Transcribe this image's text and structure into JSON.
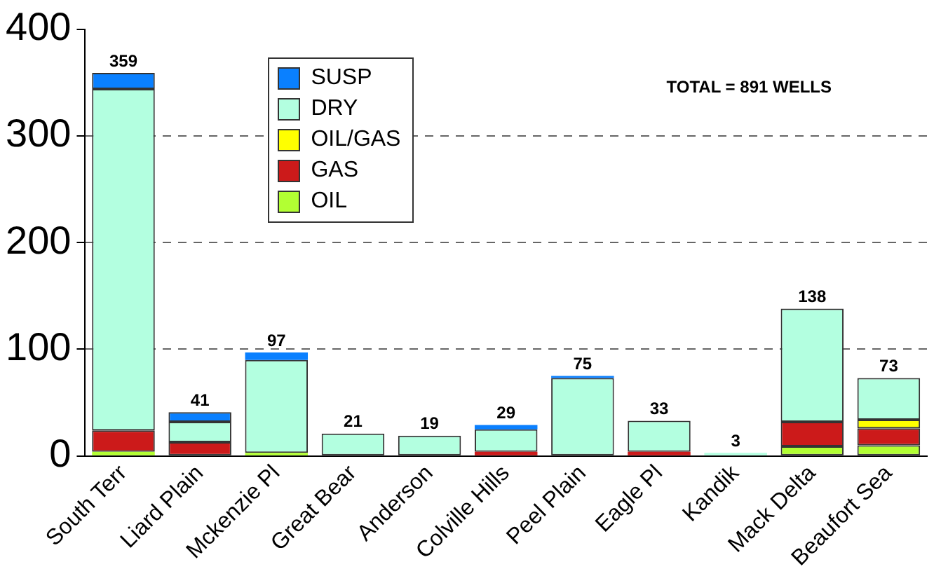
{
  "chart_data": {
    "type": "bar",
    "stacked": true,
    "categories": [
      "South Terr",
      "Liard Plain",
      "Mckenzie Pl",
      "Great Bear",
      "Anderson",
      "Colville Hills",
      "Peel Plain",
      "Eagle Pl",
      "Kandik",
      "Mack Delta",
      "Beaufort Sea"
    ],
    "series": [
      {
        "name": "OIL",
        "color": "#b2ff33",
        "values": [
          4,
          0,
          3,
          0,
          0,
          0,
          0,
          0,
          0,
          9,
          10
        ]
      },
      {
        "name": "GAS",
        "color": "#cc1a1a",
        "values": [
          20,
          13,
          0,
          0,
          0,
          4,
          0,
          4,
          0,
          23,
          16
        ]
      },
      {
        "name": "OIL/GAS",
        "color": "#ffff00",
        "values": [
          0,
          0,
          0,
          0,
          0,
          0,
          0,
          0,
          0,
          0,
          8
        ]
      },
      {
        "name": "DRY",
        "color": "#b3ffe0",
        "values": [
          320,
          19,
          87,
          21,
          19,
          21,
          73,
          29,
          3,
          106,
          39
        ]
      },
      {
        "name": "SUSP",
        "color": "#0a80ff",
        "values": [
          15,
          9,
          7,
          0,
          0,
          4,
          2,
          0,
          0,
          0,
          0
        ]
      }
    ],
    "totals": [
      "359",
      "41",
      "97",
      "21",
      "19",
      "29",
      "75",
      "33",
      "3",
      "138",
      "73"
    ],
    "ylim": [
      0,
      400
    ],
    "yticks": [
      0,
      100,
      200,
      300,
      400
    ],
    "grid": "y",
    "line_style": "dashed",
    "legend": "top left",
    "annotations": [
      "TOTAL = 891 WELLS"
    ]
  }
}
